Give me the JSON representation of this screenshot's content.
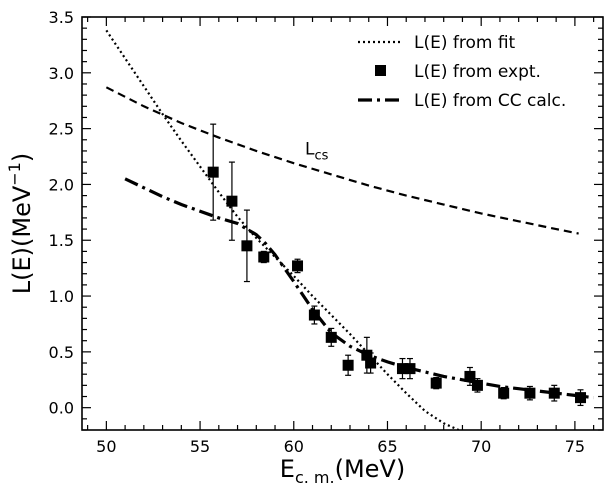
{
  "chart_data": {
    "type": "scatter",
    "xlabel_main": "E",
    "xlabel_sub": "c. m.",
    "xlabel_unit": "(MeV)",
    "ylabel_main": "L(E)(MeV",
    "ylabel_sup": "−1",
    "ylabel_close": ")",
    "xlim": [
      48.7,
      76.5
    ],
    "ylim": [
      -0.2,
      3.5
    ],
    "x_ticks": [
      50,
      55,
      60,
      65,
      70,
      75
    ],
    "y_ticks": [
      0.0,
      0.5,
      1.0,
      1.5,
      2.0,
      2.5,
      3.0,
      3.5
    ],
    "x_tick_labels": [
      "50",
      "55",
      "60",
      "65",
      "70",
      "75"
    ],
    "y_tick_labels": [
      "0.0",
      "0.5",
      "1.0",
      "1.5",
      "2.0",
      "2.5",
      "3.0",
      "3.5"
    ],
    "legend_position": "top-right",
    "grid": false,
    "series": [
      {
        "name": "L(E) from fit",
        "style": "dotted",
        "x": [
          50,
          51,
          52,
          53,
          54,
          55,
          56,
          57,
          58,
          59,
          60,
          61,
          62,
          63,
          64,
          65,
          66,
          67,
          68,
          68.8
        ],
        "y": [
          3.38,
          3.13,
          2.88,
          2.63,
          2.39,
          2.16,
          1.93,
          1.71,
          1.52,
          1.35,
          1.18,
          1.0,
          0.83,
          0.66,
          0.48,
          0.3,
          0.13,
          -0.03,
          -0.14,
          -0.2
        ]
      },
      {
        "name": "L(E) from expt.",
        "style": "markers",
        "x": [
          55.7,
          56.7,
          57.5,
          58.4,
          60.2,
          61.1,
          62.0,
          62.9,
          63.9,
          64.1,
          65.8,
          66.2,
          67.6,
          69.4,
          69.8,
          71.2,
          72.6,
          73.9,
          75.3
        ],
        "y": [
          2.11,
          1.85,
          1.45,
          1.35,
          1.27,
          0.83,
          0.63,
          0.38,
          0.47,
          0.4,
          0.35,
          0.35,
          0.22,
          0.28,
          0.2,
          0.13,
          0.13,
          0.13,
          0.09
        ],
        "yerr": [
          0.43,
          0.35,
          0.32,
          0.05,
          0.06,
          0.08,
          0.08,
          0.09,
          0.16,
          0.09,
          0.09,
          0.09,
          0.05,
          0.08,
          0.06,
          0.05,
          0.06,
          0.07,
          0.07
        ]
      },
      {
        "name": "L(E) from CC calc.",
        "style": "dashdot",
        "x": [
          51,
          52,
          53,
          54,
          55,
          56,
          57,
          58,
          58.5,
          59,
          60,
          61,
          62,
          63,
          64,
          65,
          66,
          67,
          68,
          69,
          70,
          71,
          72,
          73,
          74,
          75,
          76
        ],
        "y": [
          2.05,
          1.97,
          1.89,
          1.82,
          1.76,
          1.7,
          1.65,
          1.55,
          1.47,
          1.37,
          1.13,
          0.88,
          0.67,
          0.55,
          0.47,
          0.41,
          0.36,
          0.32,
          0.28,
          0.25,
          0.22,
          0.19,
          0.17,
          0.15,
          0.13,
          0.11,
          0.09
        ]
      },
      {
        "name": "Lcs",
        "style": "dashed",
        "x": [
          50,
          52,
          54,
          56,
          58,
          60,
          62,
          64,
          66,
          68,
          70,
          72,
          74,
          75.2
        ],
        "y": [
          2.87,
          2.7,
          2.55,
          2.42,
          2.3,
          2.19,
          2.09,
          1.99,
          1.9,
          1.82,
          1.74,
          1.67,
          1.6,
          1.56
        ]
      }
    ],
    "annotation": {
      "text_main": "L",
      "text_sub": "cs",
      "x": 60.6,
      "y": 2.27
    }
  }
}
